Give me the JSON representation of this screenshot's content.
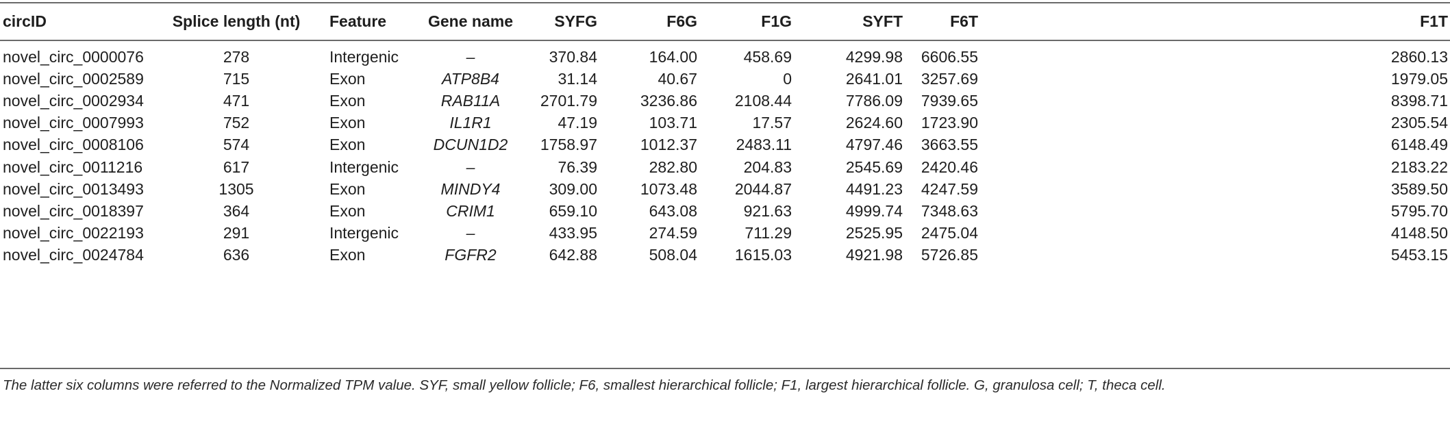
{
  "table": {
    "headers": [
      "circID",
      "Splice length (nt)",
      "Feature",
      "Gene name",
      "SYFG",
      "F6G",
      "F1G",
      "SYFT",
      "F6T",
      "F1T"
    ],
    "rows": [
      [
        "novel_circ_0000076",
        "278",
        "Intergenic",
        "–",
        "370.84",
        "164.00",
        "458.69",
        "4299.98",
        "6606.55",
        "2860.13"
      ],
      [
        "novel_circ_0002589",
        "715",
        "Exon",
        "ATP8B4",
        "31.14",
        "40.67",
        "0",
        "2641.01",
        "3257.69",
        "1979.05"
      ],
      [
        "novel_circ_0002934",
        "471",
        "Exon",
        "RAB11A",
        "2701.79",
        "3236.86",
        "2108.44",
        "7786.09",
        "7939.65",
        "8398.71"
      ],
      [
        "novel_circ_0007993",
        "752",
        "Exon",
        "IL1R1",
        "47.19",
        "103.71",
        "17.57",
        "2624.60",
        "1723.90",
        "2305.54"
      ],
      [
        "novel_circ_0008106",
        "574",
        "Exon",
        "DCUN1D2",
        "1758.97",
        "1012.37",
        "2483.11",
        "4797.46",
        "3663.55",
        "6148.49"
      ],
      [
        "novel_circ_0011216",
        "617",
        "Intergenic",
        "–",
        "76.39",
        "282.80",
        "204.83",
        "2545.69",
        "2420.46",
        "2183.22"
      ],
      [
        "novel_circ_0013493",
        "1305",
        "Exon",
        "MINDY4",
        "309.00",
        "1073.48",
        "2044.87",
        "4491.23",
        "4247.59",
        "3589.50"
      ],
      [
        "novel_circ_0018397",
        "364",
        "Exon",
        "CRIM1",
        "659.10",
        "643.08",
        "921.63",
        "4999.74",
        "7348.63",
        "5795.70"
      ],
      [
        "novel_circ_0022193",
        "291",
        "Intergenic",
        "–",
        "433.95",
        "274.59",
        "711.29",
        "2525.95",
        "2475.04",
        "4148.50"
      ],
      [
        "novel_circ_0024784",
        "636",
        "Exon",
        "FGFR2",
        "642.88",
        "508.04",
        "1615.03",
        "4921.98",
        "5726.85",
        "5453.15"
      ]
    ]
  },
  "footnote": "The latter six columns were referred to the Normalized TPM value. SYF, small yellow follicle; F6, smallest hierarchical follicle; F1, largest hierarchical follicle. G, granulosa cell; T, theca cell."
}
